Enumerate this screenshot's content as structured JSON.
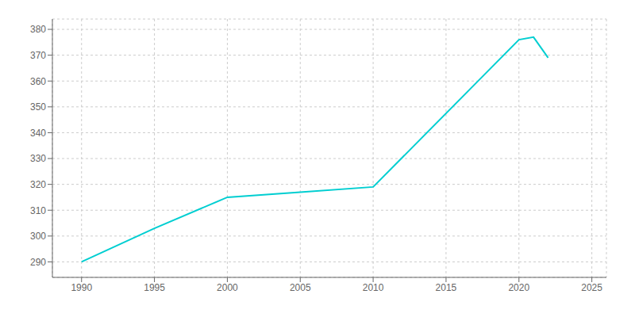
{
  "chart_data": {
    "type": "line",
    "x": [
      1990,
      1995,
      2000,
      2005,
      2010,
      2020,
      2021,
      2022
    ],
    "values": [
      290,
      303,
      315,
      317,
      319,
      376,
      377,
      369
    ],
    "color": "#00CED1",
    "xlim": [
      1988,
      2026
    ],
    "ylim": [
      284,
      384
    ],
    "xticks": [
      1990,
      1995,
      2000,
      2005,
      2010,
      2015,
      2020,
      2025
    ],
    "yticks": [
      290,
      300,
      310,
      320,
      330,
      340,
      350,
      360,
      370,
      380
    ],
    "grid": true
  }
}
